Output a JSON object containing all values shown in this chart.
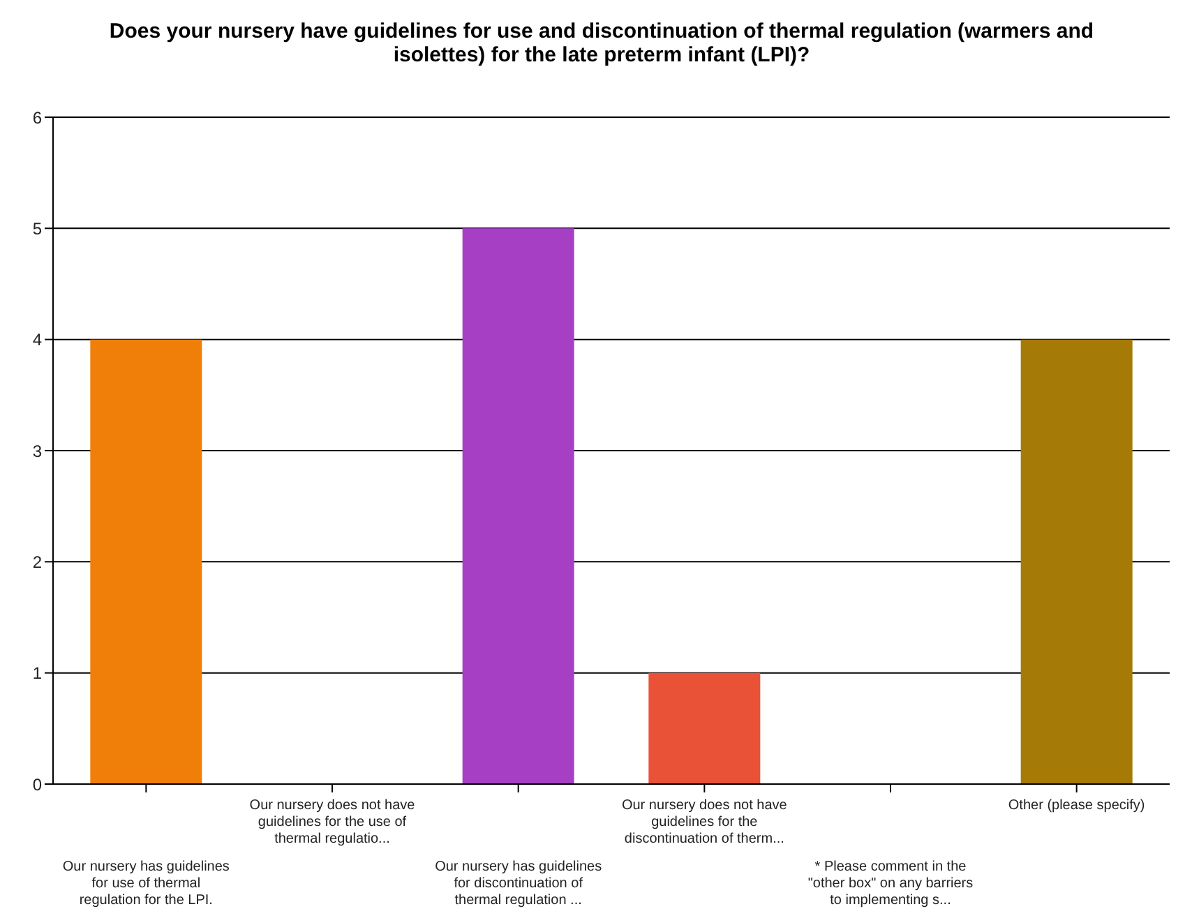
{
  "chart_data": {
    "type": "bar",
    "title": "Does your nursery have guidelines for use and discontinuation of thermal regulation (warmers and isolettes) for the late preterm infant (LPI)?",
    "categories": [
      "Our nursery has guidelines for use of thermal regulation for the LPI.",
      "Our nursery does not have guidelines for the use of thermal regulatio...",
      "Our nursery has guidelines for discontinuation of thermal regulation ...",
      "Our nursery does not have guidelines for the discontinuation of therm...",
      "* Please comment in the \"other box\" on any barriers to implementing s...",
      "Other (please specify)"
    ],
    "values": [
      4,
      0,
      5,
      1,
      0,
      4
    ],
    "colors": [
      "#f07f0a",
      null,
      "#a63fc4",
      "#ea5238",
      null,
      "#a67a06"
    ],
    "ylim": [
      0,
      6
    ],
    "yticks": [
      0,
      1,
      2,
      3,
      4,
      5,
      6
    ],
    "grid": "y"
  }
}
